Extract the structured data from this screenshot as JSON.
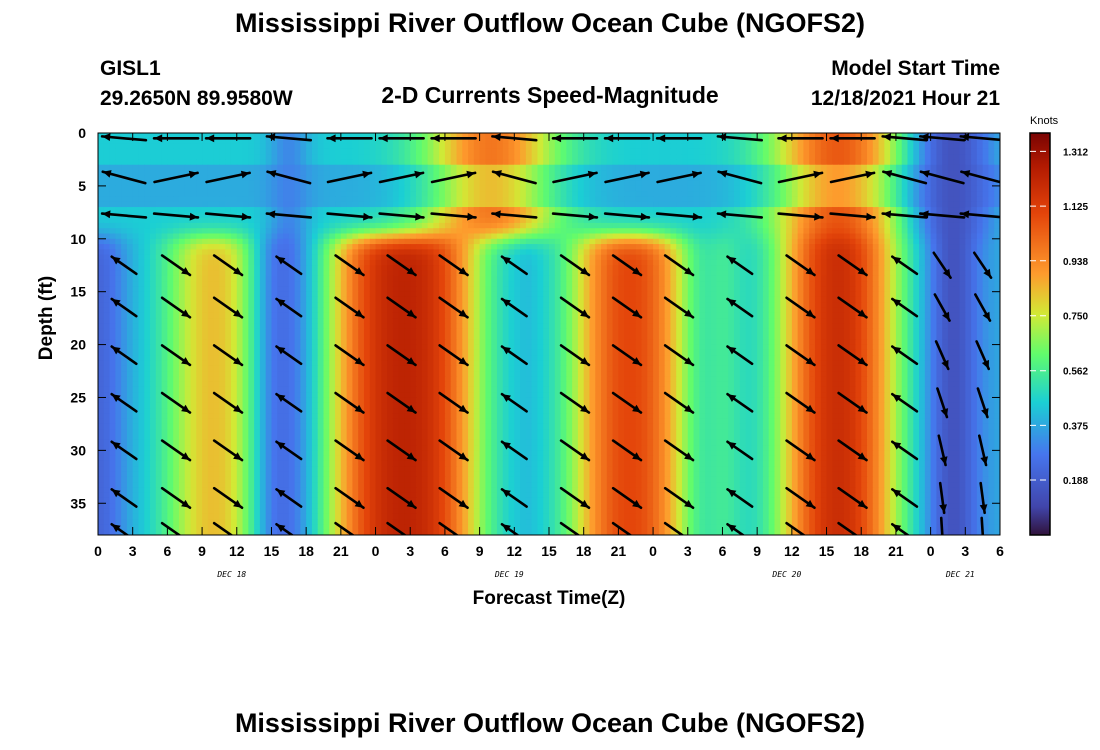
{
  "header": {
    "title": "Mississippi River Outflow Ocean Cube (NGOFS2)",
    "station_id": "GISL1",
    "station_coords": "29.2650N  89.9580W",
    "subtitle": "2-D Currents Speed-Magnitude",
    "model_start_label": "Model Start Time",
    "model_start_value": "12/18/2021 Hour 21"
  },
  "footer": {
    "title": "Mississippi River Outflow Ocean Cube (NGOFS2)"
  },
  "chart_data": {
    "type": "heatmap",
    "xlabel": "Forecast Time(Z)",
    "ylabel": "Depth (ft)",
    "x_tick_labels": [
      "0",
      "3",
      "6",
      "9",
      "12",
      "15",
      "18",
      "21",
      "0",
      "3",
      "6",
      "9",
      "12",
      "15",
      "18",
      "21",
      "0",
      "3",
      "6",
      "9",
      "12",
      "15",
      "18",
      "21",
      "0",
      "3",
      "6"
    ],
    "day_labels": [
      {
        "label": "DEC 18",
        "tick_index": 4
      },
      {
        "label": "DEC 19",
        "tick_index": 12
      },
      {
        "label": "DEC 20",
        "tick_index": 20
      },
      {
        "label": "DEC 21",
        "tick_index": 25
      }
    ],
    "xlim_hours": [
      0,
      78
    ],
    "y_ticks": [
      0,
      5,
      10,
      15,
      20,
      25,
      30,
      35
    ],
    "ylim": [
      0,
      38
    ],
    "y_inverted": true,
    "colorbar": {
      "title": "Knots",
      "tick_labels": [
        "1.312",
        "1.125",
        "0.938",
        "0.750",
        "0.562",
        "0.375",
        "0.188"
      ],
      "tick_values": [
        1.312,
        1.125,
        0.938,
        0.75,
        0.562,
        0.375,
        0.188
      ],
      "range": [
        0,
        1.375
      ],
      "colormap": "jet-like (dark blue → cyan → green → yellow → orange → dark red)"
    },
    "speed_field": {
      "surface_layer_depths_ft": [
        1,
        4.5,
        8
      ],
      "deep_layer_depth_range_ft": [
        10,
        38
      ],
      "surface_peaks": [
        {
          "center_hour": 34,
          "speed": 0.98
        },
        {
          "center_hour": 64,
          "speed": 1.05
        }
      ],
      "surface_background_speed": 0.45,
      "surface_minimum": {
        "center_hour": 74,
        "speed": 0.15
      },
      "deep_peaks": [
        {
          "start_hour": 7,
          "end_hour": 13,
          "speed": 0.98
        },
        {
          "start_hour": 21,
          "end_hour": 32,
          "speed": 1.28
        },
        {
          "start_hour": 42,
          "end_hour": 50,
          "speed": 1.22
        },
        {
          "start_hour": 60,
          "end_hour": 68,
          "speed": 1.32
        }
      ],
      "deep_minima": [
        {
          "center_hour": 0,
          "speed": 0.22
        },
        {
          "center_hour": 16,
          "speed": 0.25
        },
        {
          "center_hour": 54,
          "speed": 0.55
        },
        {
          "center_hour": 74,
          "speed": 0.15
        }
      ]
    },
    "vectors": {
      "columns_hours": [
        2.25,
        6.75,
        11.25,
        16.5,
        21.75,
        26.25,
        30.75,
        36.0,
        41.25,
        45.75,
        50.25,
        55.5,
        60.75,
        65.25,
        69.75,
        73.0,
        76.5
      ],
      "surface_depths_ft": [
        0.5,
        4.2,
        7.8
      ],
      "deep_depths_ft": [
        12.5,
        16.5,
        21,
        25.5,
        30,
        34.5,
        37.8
      ]
    }
  }
}
